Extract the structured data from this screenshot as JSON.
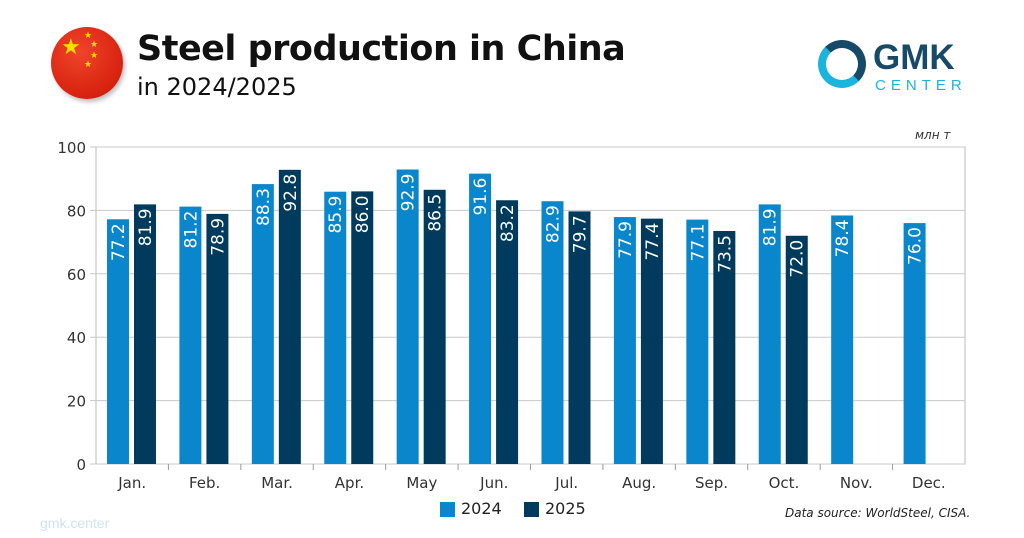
{
  "header": {
    "title": "Steel production in China",
    "subtitle": "in 2024/2025"
  },
  "logo": {
    "line1": "GMK",
    "line2": "CENTER"
  },
  "watermark": "gmk.center",
  "source": "Data source: WorldSteel, CISA.",
  "colors": {
    "2024": "#0a86cc",
    "2025": "#003a5c",
    "grid": "#c8c8c8"
  },
  "chart_data": {
    "type": "bar",
    "title": "Steel production in China",
    "subtitle": "in 2024/2025",
    "unit": "млн т",
    "categories": [
      "Jan.",
      "Feb.",
      "Mar.",
      "Apr.",
      "May",
      "Jun.",
      "Jul.",
      "Aug.",
      "Sep.",
      "Oct.",
      "Nov.",
      "Dec."
    ],
    "series": [
      {
        "name": "2024",
        "values": [
          77.2,
          81.2,
          88.3,
          85.9,
          92.9,
          91.6,
          82.9,
          77.9,
          77.1,
          81.9,
          78.4,
          76.0
        ]
      },
      {
        "name": "2025",
        "values": [
          81.9,
          78.9,
          92.8,
          86.0,
          86.5,
          83.2,
          79.7,
          77.4,
          73.5,
          72.0,
          null,
          null
        ]
      }
    ],
    "yticks": [
      0,
      20,
      40,
      60,
      80,
      100
    ],
    "ylim": [
      0,
      100
    ],
    "grid": true,
    "legend": "bottom"
  }
}
